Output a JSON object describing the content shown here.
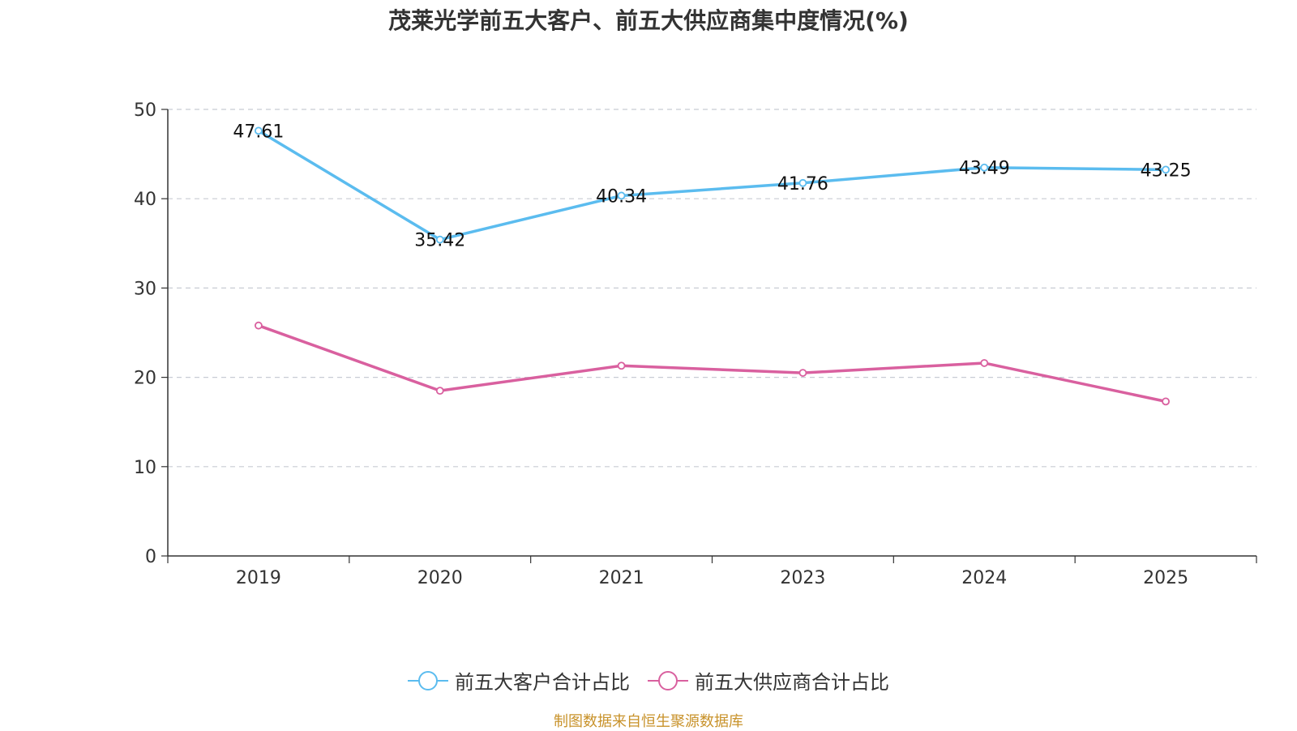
{
  "chart_data": {
    "type": "line",
    "title": "茂莱光学前五大客户、前五大供应商集中度情况(%)",
    "categories": [
      "2019",
      "2020",
      "2021",
      "2023",
      "2024",
      "2025"
    ],
    "ylim": [
      0,
      50
    ],
    "yticks": [
      0,
      10,
      20,
      30,
      40,
      50
    ],
    "grid": true,
    "legend_position": "bottom-center",
    "series": [
      {
        "name": "前五大客户合计占比",
        "color": "#5bbcef",
        "values": [
          47.61,
          35.42,
          40.34,
          41.76,
          43.49,
          43.25
        ],
        "labels": [
          "47.61",
          "35.42",
          "40.34",
          "41.76",
          "43.49",
          "43.25"
        ]
      },
      {
        "name": "前五大供应商合计占比",
        "color": "#d9609f",
        "values": [
          25.8,
          18.5,
          21.3,
          20.5,
          21.6,
          17.3
        ]
      }
    ]
  },
  "source": "制图数据来自恒生聚源数据库"
}
